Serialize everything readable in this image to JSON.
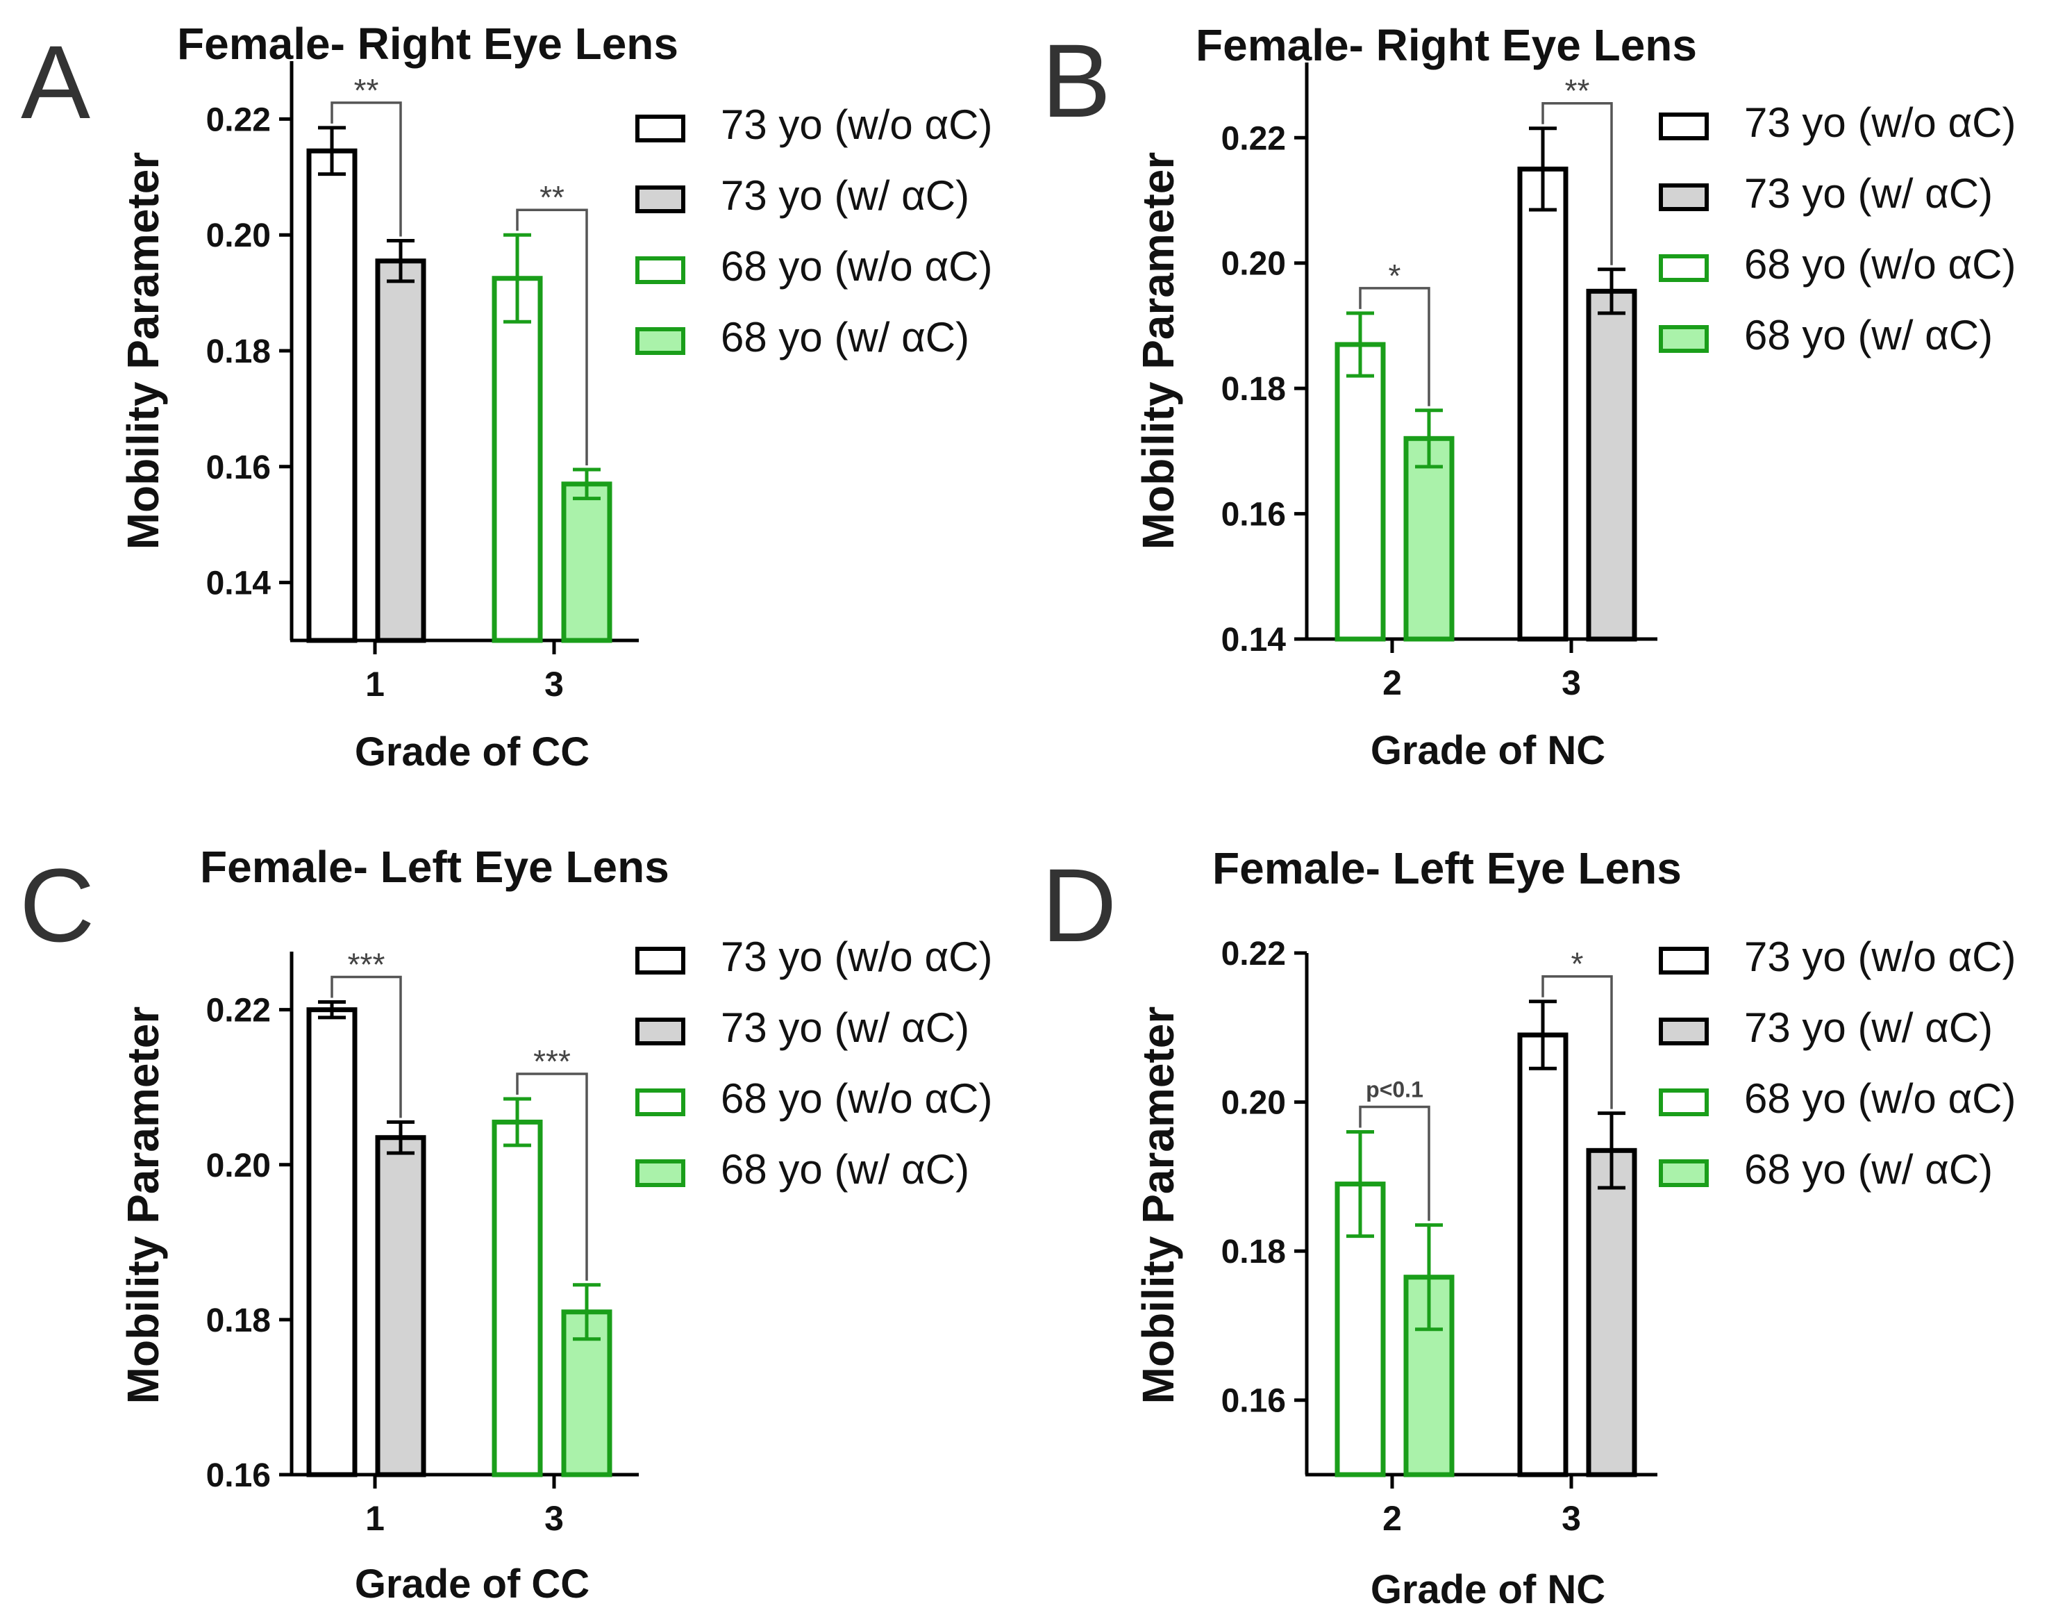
{
  "colors": {
    "black": "#000000",
    "gray_fill": "#d3d3d3",
    "green": "#1a9e1a",
    "green_fill": "#aaf2aa",
    "bracket": "#555555"
  },
  "series": [
    {
      "name": "73 yo (w/o αC)",
      "stroke": "#000000",
      "fill": "#ffffff"
    },
    {
      "name": "73 yo (w/ αC)",
      "stroke": "#000000",
      "fill": "#d3d3d3"
    },
    {
      "name": "68 yo (w/o αC)",
      "stroke": "#1a9e1a",
      "fill": "#ffffff"
    },
    {
      "name": "68 yo (w/ αC)",
      "stroke": "#1a9e1a",
      "fill": "#aaf2aa"
    }
  ],
  "chart_data": [
    {
      "type": "bar",
      "panel": "A",
      "title": "Female- Right Eye Lens",
      "xlabel": "Grade of CC",
      "ylabel": "Mobility Parameter",
      "ylim": [
        0.13,
        0.23
      ],
      "yticks": [
        0.14,
        0.16,
        0.18,
        0.2,
        0.22
      ],
      "ytick_labels": [
        "0.14",
        "0.16",
        "0.18",
        "0.20",
        "0.22"
      ],
      "groups": [
        {
          "category": "1",
          "bars": [
            {
              "series": 0,
              "value": 0.2145,
              "err": 0.004
            },
            {
              "series": 1,
              "value": 0.1955,
              "err": 0.0035
            }
          ],
          "sig": "**"
        },
        {
          "category": "3",
          "bars": [
            {
              "series": 2,
              "value": 0.1925,
              "err": 0.0075
            },
            {
              "series": 3,
              "value": 0.157,
              "err": 0.0025
            }
          ],
          "sig": "**"
        }
      ]
    },
    {
      "type": "bar",
      "panel": "B",
      "title": "Female- Right Eye Lens",
      "xlabel": "Grade of NC",
      "ylabel": "Mobility Parameter",
      "ylim": [
        0.14,
        0.232
      ],
      "yticks": [
        0.14,
        0.16,
        0.18,
        0.2,
        0.22
      ],
      "ytick_labels": [
        "0.14",
        "0.16",
        "0.18",
        "0.20",
        "0.22"
      ],
      "groups": [
        {
          "category": "2",
          "bars": [
            {
              "series": 2,
              "value": 0.187,
              "err": 0.005
            },
            {
              "series": 3,
              "value": 0.172,
              "err": 0.0045
            }
          ],
          "sig": "*"
        },
        {
          "category": "3",
          "bars": [
            {
              "series": 0,
              "value": 0.215,
              "err": 0.0065
            },
            {
              "series": 1,
              "value": 0.1955,
              "err": 0.0035
            }
          ],
          "sig": "**"
        }
      ]
    },
    {
      "type": "bar",
      "panel": "C",
      "title": "Female- Left Eye Lens",
      "xlabel": "Grade of CC",
      "ylabel": "Mobility Parameter",
      "ylim": [
        0.16,
        0.2275
      ],
      "yticks": [
        0.16,
        0.18,
        0.2,
        0.22
      ],
      "ytick_labels": [
        "0.16",
        "0.18",
        "0.20",
        "0.22"
      ],
      "groups": [
        {
          "category": "1",
          "bars": [
            {
              "series": 0,
              "value": 0.22,
              "err": 0.001
            },
            {
              "series": 1,
              "value": 0.2035,
              "err": 0.002
            }
          ],
          "sig": "***"
        },
        {
          "category": "3",
          "bars": [
            {
              "series": 2,
              "value": 0.2055,
              "err": 0.003
            },
            {
              "series": 3,
              "value": 0.181,
              "err": 0.0035
            }
          ],
          "sig": "***"
        }
      ]
    },
    {
      "type": "bar",
      "panel": "D",
      "title": "Female- Left Eye Lens",
      "xlabel": "Grade of NC",
      "ylabel": "Mobility Parameter",
      "ylim": [
        0.15,
        0.22
      ],
      "yticks": [
        0.16,
        0.18,
        0.2,
        0.22
      ],
      "ytick_labels": [
        "0.16",
        "0.18",
        "0.20",
        "0.22"
      ],
      "groups": [
        {
          "category": "2",
          "bars": [
            {
              "series": 2,
              "value": 0.189,
              "err": 0.007
            },
            {
              "series": 3,
              "value": 0.1765,
              "err": 0.007
            }
          ],
          "sig": "p<0.1"
        },
        {
          "category": "3",
          "bars": [
            {
              "series": 0,
              "value": 0.209,
              "err": 0.0045
            },
            {
              "series": 1,
              "value": 0.1935,
              "err": 0.005
            }
          ],
          "sig": "*"
        }
      ]
    }
  ]
}
